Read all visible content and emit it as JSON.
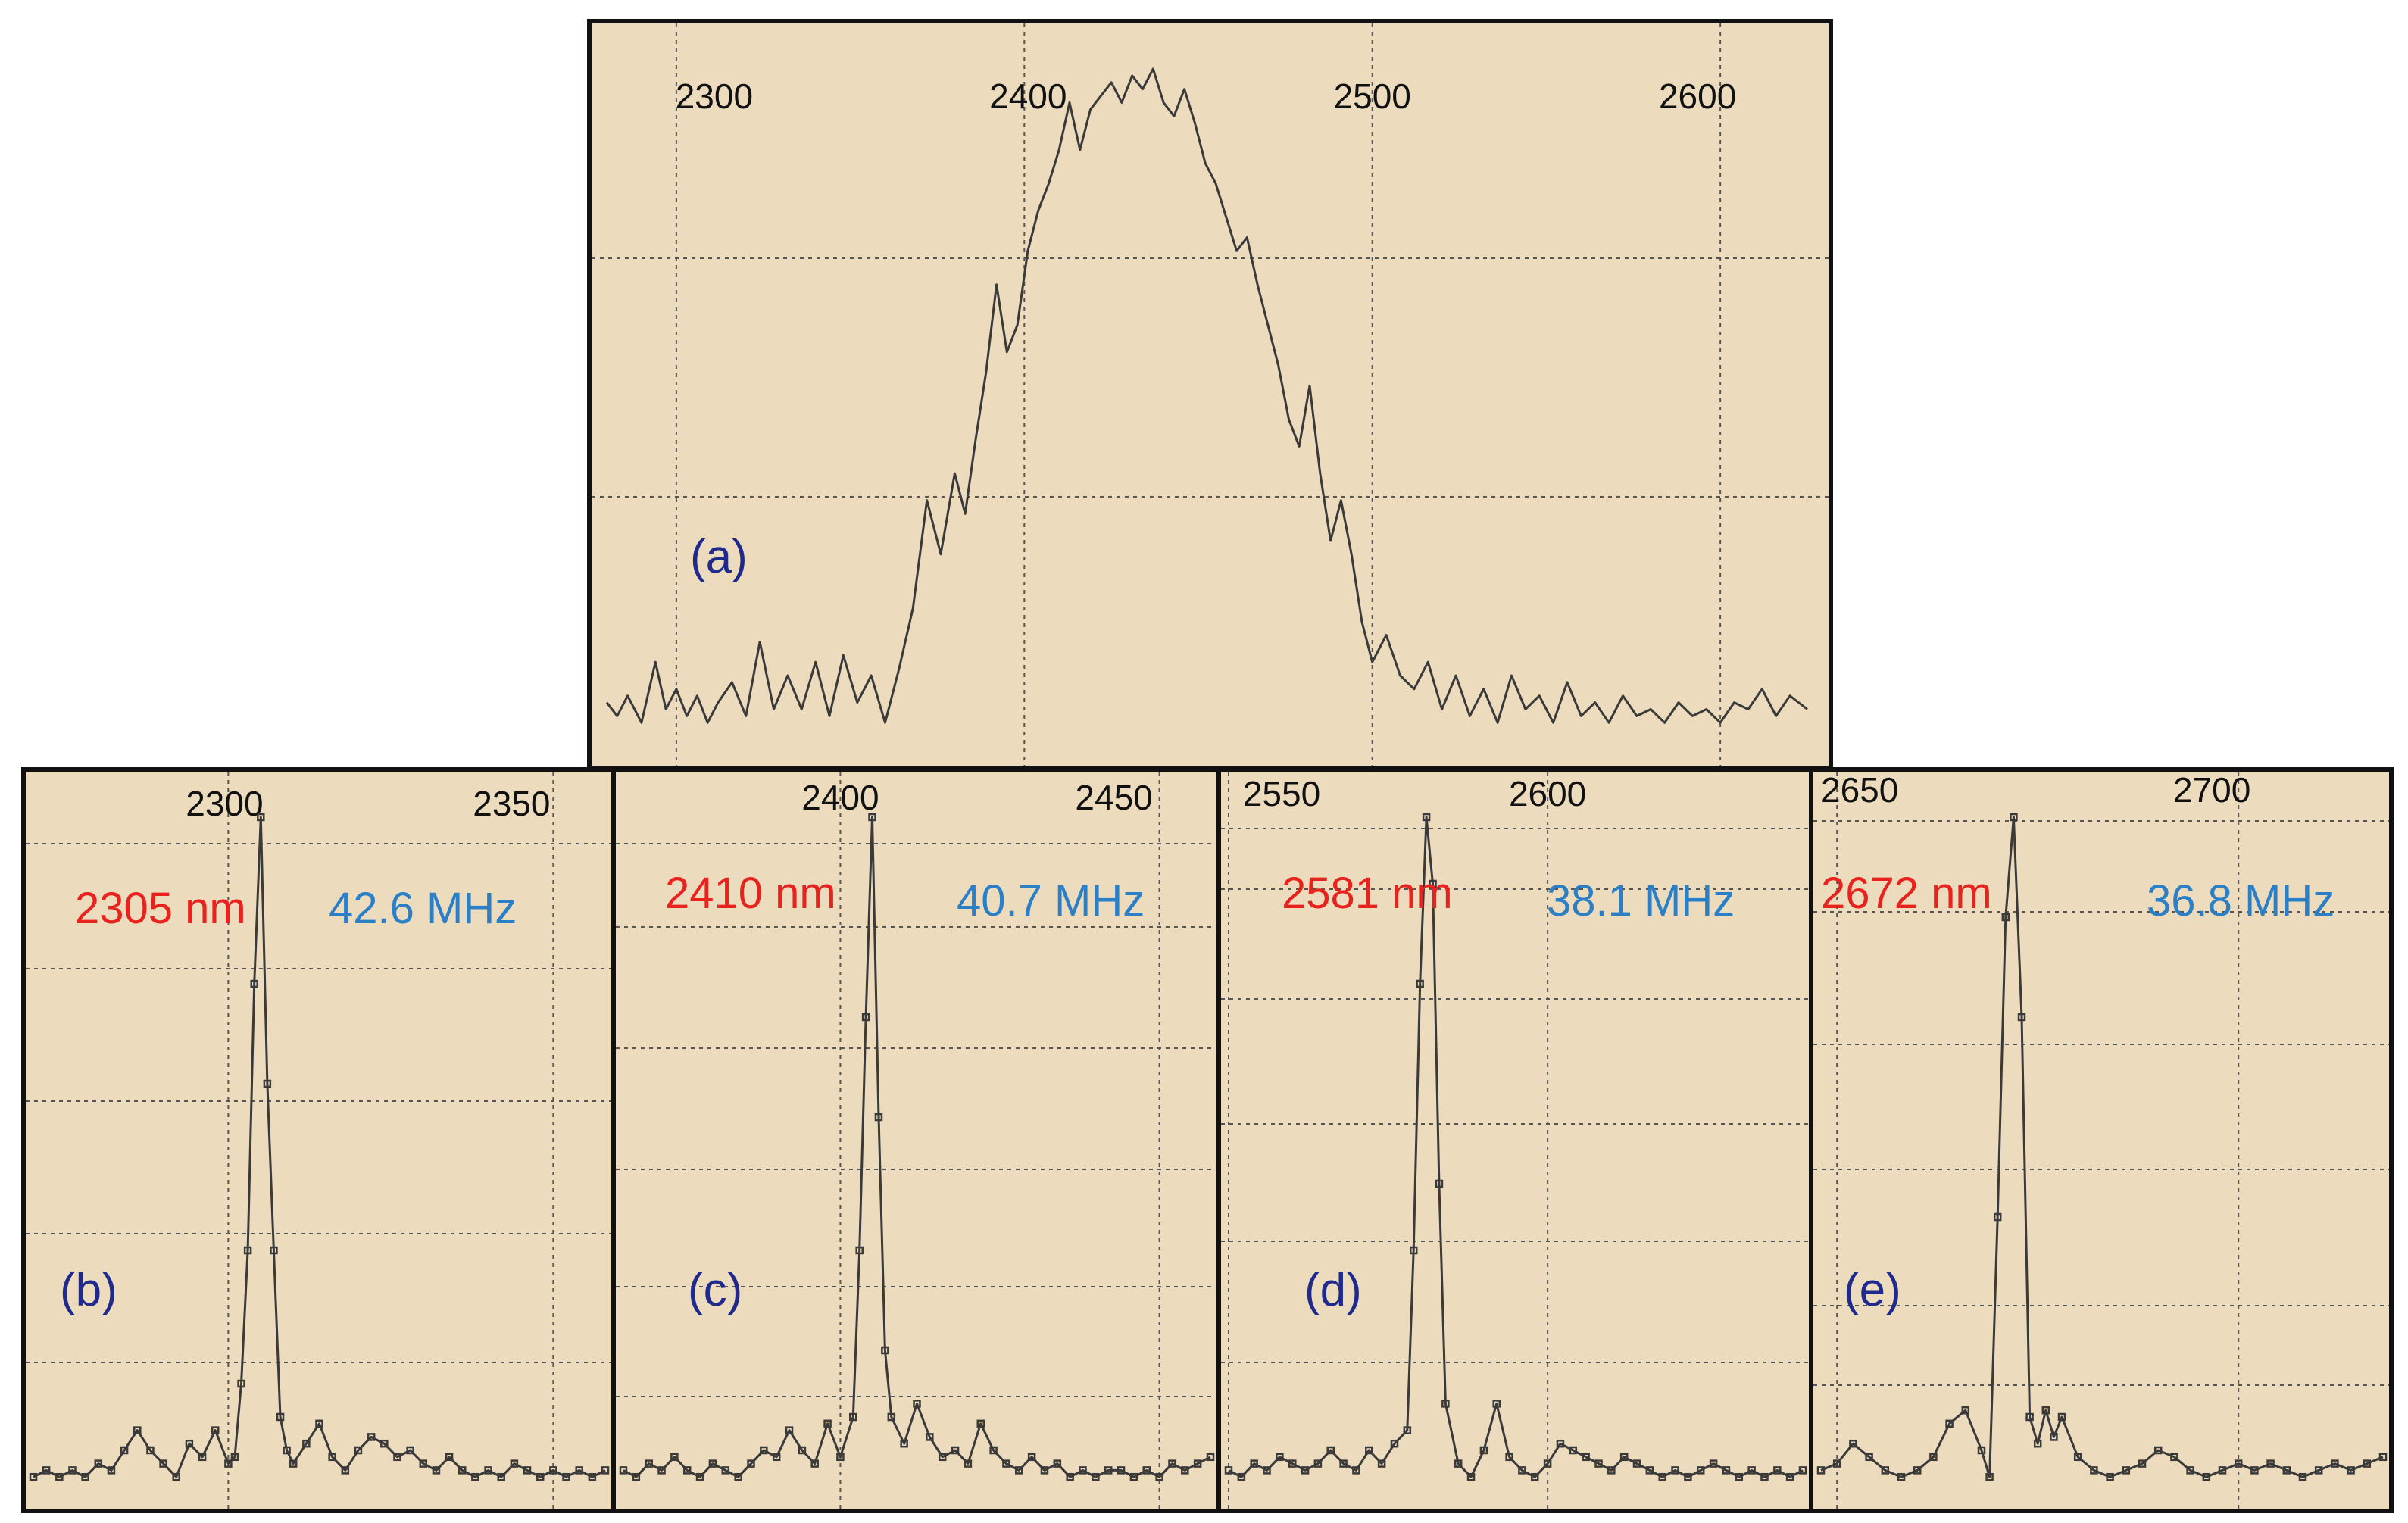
{
  "colors": {
    "background": "#ecdcbd",
    "frame": "#111111",
    "grid": "#555555",
    "trace": "#3a3a3a",
    "panel_letter": "#1f2a8c",
    "wavelength_label": "#e8231e",
    "bandwidth_label": "#2a7fc7"
  },
  "chart_data": [
    {
      "id": "a",
      "type": "line",
      "panel_label": "(a)",
      "xlim": [
        2280,
        2625
      ],
      "ylim": [
        0,
        1
      ],
      "x_ticks": [
        "2300",
        "2400",
        "2500",
        "2600"
      ],
      "grid": true,
      "series": [
        {
          "x": [
            2280,
            2283,
            2286,
            2290,
            2294,
            2297,
            2300,
            2303,
            2306,
            2309,
            2312,
            2316,
            2320,
            2324,
            2328,
            2332,
            2336,
            2340,
            2344,
            2348,
            2352,
            2356,
            2360,
            2364,
            2368,
            2372,
            2376,
            2380,
            2383,
            2386,
            2389,
            2392,
            2395,
            2398,
            2401,
            2404,
            2407,
            2410,
            2413,
            2416,
            2419,
            2422,
            2425,
            2428,
            2431,
            2434,
            2437,
            2440,
            2443,
            2446,
            2449,
            2452,
            2455,
            2458,
            2461,
            2464,
            2467,
            2470,
            2473,
            2476,
            2479,
            2482,
            2485,
            2488,
            2491,
            2494,
            2497,
            2500,
            2504,
            2508,
            2512,
            2516,
            2520,
            2524,
            2528,
            2532,
            2536,
            2540,
            2544,
            2548,
            2552,
            2556,
            2560,
            2564,
            2568,
            2572,
            2576,
            2580,
            2584,
            2588,
            2592,
            2596,
            2600,
            2604,
            2608,
            2612,
            2616,
            2620,
            2625
          ],
          "y": [
            0.06,
            0.04,
            0.07,
            0.03,
            0.12,
            0.05,
            0.08,
            0.04,
            0.07,
            0.03,
            0.06,
            0.09,
            0.04,
            0.15,
            0.05,
            0.1,
            0.05,
            0.12,
            0.04,
            0.13,
            0.06,
            0.1,
            0.03,
            0.11,
            0.2,
            0.36,
            0.28,
            0.4,
            0.34,
            0.45,
            0.55,
            0.68,
            0.58,
            0.62,
            0.73,
            0.79,
            0.83,
            0.88,
            0.95,
            0.88,
            0.94,
            0.96,
            0.98,
            0.95,
            0.99,
            0.97,
            1.0,
            0.95,
            0.93,
            0.97,
            0.92,
            0.86,
            0.83,
            0.78,
            0.73,
            0.75,
            0.68,
            0.62,
            0.56,
            0.48,
            0.44,
            0.53,
            0.4,
            0.3,
            0.36,
            0.28,
            0.18,
            0.12,
            0.16,
            0.1,
            0.08,
            0.12,
            0.05,
            0.1,
            0.04,
            0.08,
            0.03,
            0.1,
            0.05,
            0.07,
            0.03,
            0.09,
            0.04,
            0.06,
            0.03,
            0.07,
            0.04,
            0.05,
            0.03,
            0.06,
            0.04,
            0.05,
            0.03,
            0.06,
            0.05,
            0.08,
            0.04,
            0.07,
            0.05
          ]
        }
      ]
    },
    {
      "id": "b",
      "type": "line",
      "panel_label": "(b)",
      "wavelength_label": "2305 nm",
      "bandwidth_label": "42.6 MHz",
      "xlim": [
        2270,
        2358
      ],
      "ylim": [
        0,
        1
      ],
      "x_ticks": [
        "2300",
        "2350"
      ],
      "grid": true,
      "series": [
        {
          "x": [
            2270,
            2272,
            2274,
            2276,
            2278,
            2280,
            2282,
            2284,
            2286,
            2288,
            2290,
            2292,
            2294,
            2296,
            2298,
            2300,
            2301,
            2302,
            2303,
            2304,
            2305,
            2306,
            2307,
            2308,
            2309,
            2310,
            2312,
            2314,
            2316,
            2318,
            2320,
            2322,
            2324,
            2326,
            2328,
            2330,
            2332,
            2334,
            2336,
            2338,
            2340,
            2342,
            2344,
            2346,
            2348,
            2350,
            2352,
            2354,
            2356,
            2358
          ],
          "y": [
            0.01,
            0.02,
            0.01,
            0.02,
            0.01,
            0.03,
            0.02,
            0.05,
            0.08,
            0.05,
            0.03,
            0.01,
            0.06,
            0.04,
            0.08,
            0.03,
            0.04,
            0.15,
            0.35,
            0.75,
            1.0,
            0.6,
            0.35,
            0.1,
            0.05,
            0.03,
            0.06,
            0.09,
            0.04,
            0.02,
            0.05,
            0.07,
            0.06,
            0.04,
            0.05,
            0.03,
            0.02,
            0.04,
            0.02,
            0.01,
            0.02,
            0.01,
            0.03,
            0.02,
            0.01,
            0.02,
            0.01,
            0.02,
            0.01,
            0.02
          ]
        }
      ]
    },
    {
      "id": "c",
      "type": "line",
      "panel_label": "(c)",
      "wavelength_label": "2410 nm",
      "bandwidth_label": "40.7 MHz",
      "xlim": [
        2366,
        2458
      ],
      "ylim": [
        0,
        1
      ],
      "x_ticks": [
        "2400",
        "2450"
      ],
      "grid": true,
      "series": [
        {
          "x": [
            2366,
            2368,
            2370,
            2372,
            2374,
            2376,
            2378,
            2380,
            2382,
            2384,
            2386,
            2388,
            2390,
            2392,
            2394,
            2396,
            2398,
            2400,
            2402,
            2403,
            2404,
            2405,
            2406,
            2407,
            2408,
            2410,
            2412,
            2414,
            2416,
            2418,
            2420,
            2422,
            2424,
            2426,
            2428,
            2430,
            2432,
            2434,
            2436,
            2438,
            2440,
            2442,
            2444,
            2446,
            2448,
            2450,
            2452,
            2454,
            2456,
            2458
          ],
          "y": [
            0.02,
            0.01,
            0.03,
            0.02,
            0.04,
            0.02,
            0.01,
            0.03,
            0.02,
            0.01,
            0.03,
            0.05,
            0.04,
            0.08,
            0.05,
            0.03,
            0.09,
            0.04,
            0.1,
            0.35,
            0.7,
            1.0,
            0.55,
            0.2,
            0.1,
            0.06,
            0.12,
            0.07,
            0.04,
            0.05,
            0.03,
            0.09,
            0.05,
            0.03,
            0.02,
            0.04,
            0.02,
            0.03,
            0.01,
            0.02,
            0.01,
            0.02,
            0.02,
            0.01,
            0.02,
            0.01,
            0.03,
            0.02,
            0.03,
            0.04
          ]
        }
      ]
    },
    {
      "id": "d",
      "type": "line",
      "panel_label": "(d)",
      "wavelength_label": "2581 nm",
      "bandwidth_label": "38.1 MHz",
      "xlim": [
        2550,
        2640
      ],
      "ylim": [
        0,
        1
      ],
      "x_ticks": [
        "2550",
        "2600"
      ],
      "grid": true,
      "series": [
        {
          "x": [
            2550,
            2552,
            2554,
            2556,
            2558,
            2560,
            2562,
            2564,
            2566,
            2568,
            2570,
            2572,
            2574,
            2576,
            2578,
            2579,
            2580,
            2581,
            2582,
            2583,
            2584,
            2586,
            2588,
            2590,
            2592,
            2594,
            2596,
            2598,
            2600,
            2602,
            2604,
            2606,
            2608,
            2610,
            2612,
            2614,
            2616,
            2618,
            2620,
            2622,
            2624,
            2626,
            2628,
            2630,
            2632,
            2634,
            2636,
            2638,
            2640
          ],
          "y": [
            0.02,
            0.01,
            0.03,
            0.02,
            0.04,
            0.03,
            0.02,
            0.03,
            0.05,
            0.03,
            0.02,
            0.05,
            0.03,
            0.06,
            0.08,
            0.35,
            0.75,
            1.0,
            0.9,
            0.45,
            0.12,
            0.03,
            0.01,
            0.05,
            0.12,
            0.04,
            0.02,
            0.01,
            0.03,
            0.06,
            0.05,
            0.04,
            0.03,
            0.02,
            0.04,
            0.03,
            0.02,
            0.01,
            0.02,
            0.01,
            0.02,
            0.03,
            0.02,
            0.01,
            0.02,
            0.01,
            0.02,
            0.01,
            0.02
          ]
        }
      ]
    },
    {
      "id": "e",
      "type": "line",
      "panel_label": "(e)",
      "wavelength_label": "2672 nm",
      "bandwidth_label": "36.8 MHz",
      "xlim": [
        2648,
        2718
      ],
      "ylim": [
        0,
        1
      ],
      "x_ticks": [
        "2650",
        "2700"
      ],
      "grid": true,
      "series": [
        {
          "x": [
            2648,
            2650,
            2652,
            2654,
            2656,
            2658,
            2660,
            2662,
            2664,
            2666,
            2668,
            2669,
            2670,
            2671,
            2672,
            2673,
            2674,
            2675,
            2676,
            2677,
            2678,
            2680,
            2682,
            2684,
            2686,
            2688,
            2690,
            2692,
            2694,
            2696,
            2698,
            2700,
            2702,
            2704,
            2706,
            2708,
            2710,
            2712,
            2714,
            2716,
            2718
          ],
          "y": [
            0.02,
            0.03,
            0.06,
            0.04,
            0.02,
            0.01,
            0.02,
            0.04,
            0.09,
            0.11,
            0.05,
            0.01,
            0.4,
            0.85,
            1.0,
            0.7,
            0.1,
            0.06,
            0.11,
            0.07,
            0.1,
            0.04,
            0.02,
            0.01,
            0.02,
            0.03,
            0.05,
            0.04,
            0.02,
            0.01,
            0.02,
            0.03,
            0.02,
            0.03,
            0.02,
            0.01,
            0.02,
            0.03,
            0.02,
            0.03,
            0.04
          ]
        }
      ]
    }
  ]
}
